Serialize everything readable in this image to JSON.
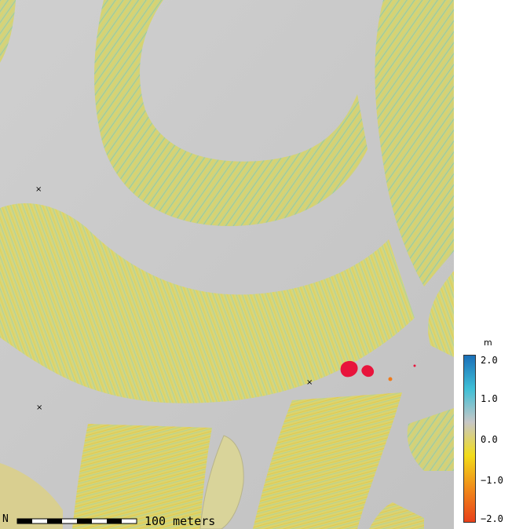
{
  "map": {
    "colors": {
      "background_gray": "#c9c9c9",
      "surface_yellow": "#d8d86a",
      "surface_cyan": "#5ec8c8",
      "change_red": "#e8143c",
      "change_orange": "#f07a1a"
    }
  },
  "legend": {
    "unit": "m",
    "ticks": [
      "2.0",
      "1.0",
      "0.0",
      "−1.0",
      "−2.0"
    ],
    "tick_values": [
      2.0,
      1.0,
      0.0,
      -1.0,
      -2.0
    ],
    "range": [
      -2.0,
      2.0
    ],
    "gradient": [
      "#1a6fb8",
      "#3fbfd6",
      "#c7c7c7",
      "#f2dc1a",
      "#f08a1a",
      "#e8401a"
    ]
  },
  "scale": {
    "label": "100 meters",
    "north_symbol": "N"
  }
}
